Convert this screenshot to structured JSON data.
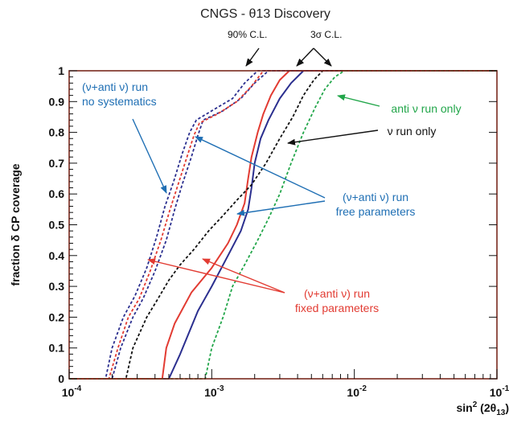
{
  "chart_data": {
    "type": "line",
    "title": "CNGS - θ13 Discovery",
    "xlabel": "sin² (2θ₁₃)",
    "ylabel": "fraction δ CP coverage",
    "xscale": "log",
    "xlim": [
      0.0001,
      0.1
    ],
    "ylim": [
      0,
      1
    ],
    "grid": false,
    "x_ticks": [
      {
        "value": 0.0001,
        "base": "10",
        "exp": "-4"
      },
      {
        "value": 0.001,
        "base": "10",
        "exp": "-3"
      },
      {
        "value": 0.01,
        "base": "10",
        "exp": "-2"
      },
      {
        "value": 0.1,
        "base": "10",
        "exp": "-1"
      }
    ],
    "y_ticks": [
      "0",
      "0.1",
      "0.2",
      "0.3",
      "0.4",
      "0.5",
      "0.6",
      "0.7",
      "0.8",
      "0.9",
      "1"
    ],
    "colors": {
      "frame": "#7a2a1e",
      "blue_dark": "#2b2f8f",
      "red": "#e23b32",
      "black": "#111111",
      "green": "#22a64a",
      "annot_blue": "#1f6fb4",
      "annot_red": "#e23b32",
      "annot_green": "#22a64a"
    },
    "series": [
      {
        "group": "free",
        "style": "solid",
        "color": "blue_dark",
        "points": [
          [
            0.0001,
            0
          ],
          [
            0.0005,
            0
          ],
          [
            0.0006,
            0.08
          ],
          [
            0.0008,
            0.22
          ],
          [
            0.001,
            0.3
          ],
          [
            0.0013,
            0.4
          ],
          [
            0.0016,
            0.48
          ],
          [
            0.0018,
            0.55
          ],
          [
            0.0019,
            0.62
          ],
          [
            0.002,
            0.7
          ],
          [
            0.0022,
            0.78
          ],
          [
            0.0025,
            0.84
          ],
          [
            0.003,
            0.91
          ],
          [
            0.0036,
            0.96
          ],
          [
            0.0044,
            1.0
          ],
          [
            0.1,
            1.0
          ]
        ]
      },
      {
        "group": "fixed",
        "style": "solid",
        "color": "red",
        "points": [
          [
            0.0001,
            0
          ],
          [
            0.00045,
            0
          ],
          [
            0.00048,
            0.1
          ],
          [
            0.00055,
            0.18
          ],
          [
            0.00072,
            0.28
          ],
          [
            0.001,
            0.36
          ],
          [
            0.0013,
            0.44
          ],
          [
            0.0015,
            0.5
          ],
          [
            0.0017,
            0.57
          ],
          [
            0.0018,
            0.65
          ],
          [
            0.0019,
            0.72
          ],
          [
            0.0021,
            0.8
          ],
          [
            0.0023,
            0.86
          ],
          [
            0.0026,
            0.92
          ],
          [
            0.003,
            0.97
          ],
          [
            0.0035,
            1.0
          ],
          [
            0.1,
            1.0
          ]
        ]
      },
      {
        "group": "free",
        "style": "dashed",
        "color": "blue_dark",
        "points": [
          [
            0.0001,
            0
          ],
          [
            0.0002,
            0
          ],
          [
            0.00023,
            0.1
          ],
          [
            0.00028,
            0.2
          ],
          [
            0.00033,
            0.26
          ],
          [
            0.0004,
            0.35
          ],
          [
            0.00048,
            0.45
          ],
          [
            0.00055,
            0.55
          ],
          [
            0.00062,
            0.63
          ],
          [
            0.00072,
            0.72
          ],
          [
            0.0008,
            0.79
          ],
          [
            0.00087,
            0.84
          ],
          [
            0.0012,
            0.87
          ],
          [
            0.0016,
            0.91
          ],
          [
            0.002,
            0.96
          ],
          [
            0.0025,
            1.0
          ],
          [
            0.1,
            1.0
          ]
        ]
      },
      {
        "group": "fixed",
        "style": "dashed",
        "color": "red",
        "points": [
          [
            0.0001,
            0
          ],
          [
            0.00019,
            0
          ],
          [
            0.00022,
            0.1
          ],
          [
            0.00026,
            0.2
          ],
          [
            0.00031,
            0.26
          ],
          [
            0.00037,
            0.35
          ],
          [
            0.00044,
            0.45
          ],
          [
            0.00051,
            0.55
          ],
          [
            0.00058,
            0.63
          ],
          [
            0.00067,
            0.72
          ],
          [
            0.00075,
            0.79
          ],
          [
            0.00082,
            0.83
          ],
          [
            0.0011,
            0.86
          ],
          [
            0.0015,
            0.9
          ],
          [
            0.0019,
            0.95
          ],
          [
            0.0023,
            1.0
          ],
          [
            0.1,
            1.0
          ]
        ]
      },
      {
        "group": "nosys",
        "style": "dashed",
        "color": "blue_dark",
        "points": [
          [
            0.0001,
            0
          ],
          [
            0.00018,
            0
          ],
          [
            0.0002,
            0.1
          ],
          [
            0.00024,
            0.2
          ],
          [
            0.00029,
            0.27
          ],
          [
            0.00035,
            0.36
          ],
          [
            0.00041,
            0.46
          ],
          [
            0.00047,
            0.56
          ],
          [
            0.00054,
            0.64
          ],
          [
            0.00062,
            0.73
          ],
          [
            0.0007,
            0.8
          ],
          [
            0.00078,
            0.84
          ],
          [
            0.001,
            0.87
          ],
          [
            0.0014,
            0.91
          ],
          [
            0.0017,
            0.96
          ],
          [
            0.0021,
            1.0
          ],
          [
            0.1,
            1.0
          ]
        ]
      },
      {
        "group": "nu",
        "style": "dashed",
        "color": "black",
        "points": [
          [
            0.0001,
            0
          ],
          [
            0.00025,
            0
          ],
          [
            0.00028,
            0.1
          ],
          [
            0.00035,
            0.2
          ],
          [
            0.00042,
            0.26
          ],
          [
            0.0005,
            0.32
          ],
          [
            0.0006,
            0.37
          ],
          [
            0.00075,
            0.42
          ],
          [
            0.00095,
            0.48
          ],
          [
            0.0012,
            0.53
          ],
          [
            0.0015,
            0.58
          ],
          [
            0.0019,
            0.63
          ],
          [
            0.0024,
            0.7
          ],
          [
            0.003,
            0.78
          ],
          [
            0.0037,
            0.85
          ],
          [
            0.0044,
            0.92
          ],
          [
            0.0052,
            0.97
          ],
          [
            0.006,
            1.0
          ],
          [
            0.1,
            1.0
          ]
        ]
      },
      {
        "group": "antinu",
        "style": "dashed",
        "color": "green",
        "points": [
          [
            0.0001,
            0
          ],
          [
            0.0009,
            0
          ],
          [
            0.001,
            0.1
          ],
          [
            0.0012,
            0.2
          ],
          [
            0.0014,
            0.3
          ],
          [
            0.0017,
            0.37
          ],
          [
            0.0021,
            0.45
          ],
          [
            0.0025,
            0.52
          ],
          [
            0.003,
            0.6
          ],
          [
            0.0036,
            0.7
          ],
          [
            0.0044,
            0.8
          ],
          [
            0.0053,
            0.88
          ],
          [
            0.0062,
            0.94
          ],
          [
            0.0073,
            0.98
          ],
          [
            0.0085,
            1.0
          ],
          [
            0.1,
            1.0
          ]
        ]
      }
    ],
    "annotations": [
      {
        "id": "cl90",
        "lines": [
          "90% C.L."
        ],
        "color": "black",
        "small": true
      },
      {
        "id": "cl3s",
        "lines": [
          "3σ C.L."
        ],
        "color": "black",
        "small": true
      },
      {
        "id": "nosys",
        "lines": [
          "(ν+anti ν) run",
          "no systematics"
        ],
        "color": "annot_blue"
      },
      {
        "id": "antinu",
        "lines": [
          "anti ν run only"
        ],
        "color": "annot_green"
      },
      {
        "id": "nu",
        "lines": [
          "ν run only"
        ],
        "color": "black"
      },
      {
        "id": "free",
        "lines": [
          "(ν+anti ν) run",
          "free parameters"
        ],
        "color": "annot_blue"
      },
      {
        "id": "fixed",
        "lines": [
          "(ν+anti ν) run",
          "fixed parameters"
        ],
        "color": "annot_red"
      }
    ]
  }
}
